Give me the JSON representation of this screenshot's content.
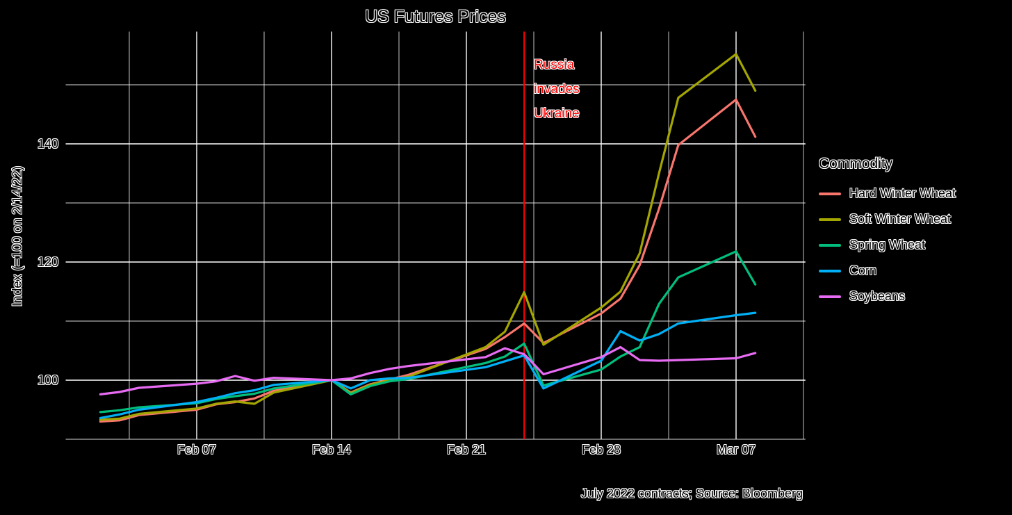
{
  "chart_data": {
    "type": "line",
    "title": "US Futures Prices",
    "ylabel": "Index (=100 on 2/14/22)",
    "caption": "July 2022 contracts; Source: Bloomberg",
    "legend_title": "Commodity",
    "legend_position": "right",
    "grid": true,
    "ylim": [
      90,
      159
    ],
    "xlim_day_offsets": [
      -1.8,
      36.6
    ],
    "y_axis_ticks": [
      {
        "label": "100",
        "value": 100
      },
      {
        "label": "120",
        "value": 120
      },
      {
        "label": "140",
        "value": 140
      }
    ],
    "y_minor_gridlines": [
      90,
      110,
      130,
      150
    ],
    "x_axis_ticks": [
      {
        "label": "Feb 07",
        "day_offset": 5
      },
      {
        "label": "Feb 14",
        "day_offset": 12
      },
      {
        "label": "Feb 21",
        "day_offset": 19
      },
      {
        "label": "Feb 28",
        "day_offset": 26
      },
      {
        "label": "Mar 07",
        "day_offset": 33
      }
    ],
    "x_minor_gridline_day_offsets": [
      1.5,
      8.5,
      15.5,
      22.5,
      29.5,
      36.5
    ],
    "vline": {
      "day_offset": 22,
      "color": "#ff0000"
    },
    "annotation": {
      "text": "Russia\ninvades\nUkraine",
      "color": "#ff0000",
      "day_offset": 22
    },
    "dates": [
      "Feb 02",
      "Feb 03",
      "Feb 04",
      "Feb 07",
      "Feb 08",
      "Feb 09",
      "Feb 10",
      "Feb 11",
      "Feb 14",
      "Feb 15",
      "Feb 16",
      "Feb 17",
      "Feb 18",
      "Feb 22",
      "Feb 23",
      "Feb 24",
      "Feb 25",
      "Feb 28",
      "Mar 01",
      "Mar 02",
      "Mar 03",
      "Mar 04",
      "Mar 07",
      "Mar 08"
    ],
    "day_offsets": [
      0,
      1,
      2,
      5,
      6,
      7,
      8,
      9,
      12,
      13,
      14,
      15,
      16,
      20,
      21,
      22,
      23,
      26,
      27,
      28,
      29,
      30,
      33,
      34
    ],
    "series": [
      {
        "name": "Hard Winter Wheat",
        "color": "#F8766D",
        "values": [
          93.0,
          93.2,
          94.1,
          95.0,
          95.9,
          96.3,
          96.9,
          98.2,
          100.0,
          97.9,
          99.3,
          100.1,
          100.9,
          105.3,
          107.3,
          109.6,
          106.3,
          111.3,
          113.8,
          119.5,
          129.0,
          139.8,
          147.5,
          141.2
        ]
      },
      {
        "name": "Soft Winter Wheat",
        "color": "#A3A500",
        "values": [
          93.3,
          93.5,
          94.3,
          95.2,
          96.0,
          96.4,
          96.0,
          97.9,
          100.0,
          97.8,
          99.2,
          100.0,
          100.6,
          105.6,
          108.2,
          114.9,
          106.0,
          112.3,
          115.0,
          121.5,
          135.0,
          147.8,
          155.2,
          149.0
        ]
      },
      {
        "name": "Spring Wheat",
        "color": "#00BF7D",
        "values": [
          94.6,
          94.9,
          95.4,
          96.1,
          96.8,
          97.3,
          97.7,
          98.6,
          100.0,
          97.6,
          99.0,
          99.8,
          100.2,
          102.9,
          104.0,
          106.2,
          99.1,
          101.8,
          104.0,
          105.6,
          112.9,
          117.4,
          121.8,
          116.2
        ]
      },
      {
        "name": "Corn",
        "color": "#00B0F6",
        "values": [
          93.6,
          94.2,
          95.0,
          96.3,
          97.0,
          97.8,
          98.3,
          99.2,
          100.0,
          98.6,
          100.0,
          100.3,
          100.4,
          102.2,
          103.2,
          104.2,
          98.6,
          103.3,
          108.3,
          106.7,
          107.8,
          109.6,
          111.0,
          111.4
        ]
      },
      {
        "name": "Soybeans",
        "color": "#E76BF3",
        "values": [
          97.6,
          98.0,
          98.7,
          99.4,
          99.8,
          100.7,
          99.9,
          100.4,
          100.0,
          100.3,
          101.2,
          101.9,
          102.4,
          103.9,
          105.4,
          104.4,
          101.0,
          103.9,
          105.6,
          103.4,
          103.3,
          103.4,
          103.7,
          104.6
        ]
      }
    ]
  }
}
